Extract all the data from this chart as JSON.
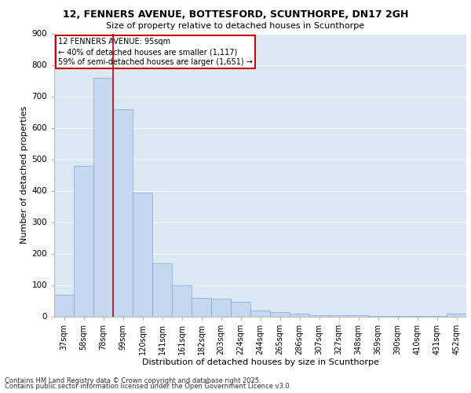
{
  "title": "12, FENNERS AVENUE, BOTTESFORD, SCUNTHORPE, DN17 2GH",
  "subtitle": "Size of property relative to detached houses in Scunthorpe",
  "xlabel": "Distribution of detached houses by size in Scunthorpe",
  "ylabel": "Number of detached properties",
  "categories": [
    "37sqm",
    "58sqm",
    "78sqm",
    "99sqm",
    "120sqm",
    "141sqm",
    "161sqm",
    "182sqm",
    "203sqm",
    "224sqm",
    "244sqm",
    "265sqm",
    "286sqm",
    "307sqm",
    "327sqm",
    "348sqm",
    "369sqm",
    "390sqm",
    "410sqm",
    "431sqm",
    "452sqm"
  ],
  "values": [
    70,
    478,
    760,
    660,
    395,
    168,
    100,
    60,
    57,
    47,
    20,
    15,
    10,
    5,
    3,
    3,
    2,
    2,
    2,
    2,
    10
  ],
  "bar_color": "#c5d8f0",
  "bar_edge_color": "#7aadd4",
  "vline_x": 2.5,
  "annotation_line1": "12 FENNERS AVENUE: 95sqm",
  "annotation_line2": "← 40% of detached houses are smaller (1,117)",
  "annotation_line3": "59% of semi-detached houses are larger (1,651) →",
  "annotation_box_color": "#cc0000",
  "background_color": "#dde8f5",
  "grid_color": "#ffffff",
  "footer_line1": "Contains HM Land Registry data © Crown copyright and database right 2025.",
  "footer_line2": "Contains public sector information licensed under the Open Government Licence v3.0.",
  "ylim": [
    0,
    900
  ],
  "yticks": [
    0,
    100,
    200,
    300,
    400,
    500,
    600,
    700,
    800,
    900
  ],
  "title_fontsize": 9,
  "subtitle_fontsize": 8,
  "axis_label_fontsize": 8,
  "tick_fontsize": 7,
  "annotation_fontsize": 7
}
